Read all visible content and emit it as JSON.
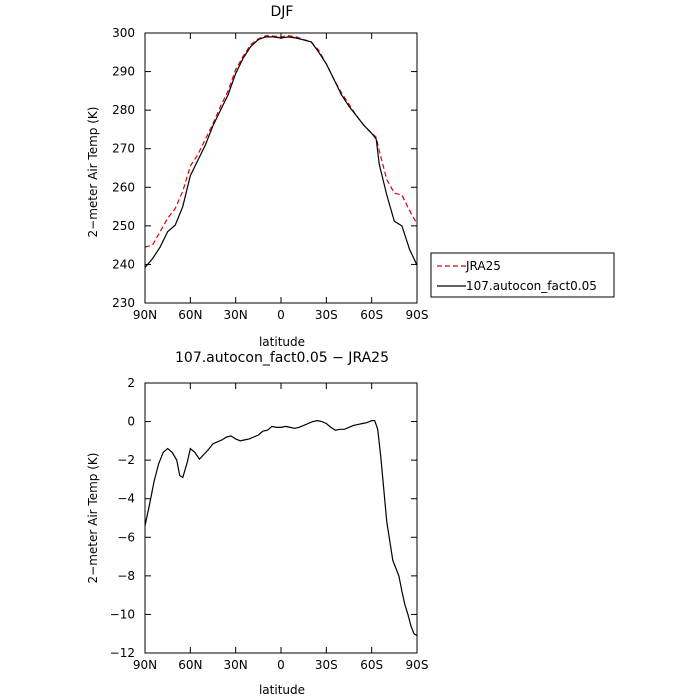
{
  "chart_data": [
    {
      "type": "line",
      "title": "DJF",
      "xlabel": "latitude",
      "ylabel": "2−meter Air Temp (K)",
      "xlim": [
        90,
        -90
      ],
      "ylim": [
        230,
        300
      ],
      "xticks": [
        90,
        60,
        30,
        0,
        -30,
        -60,
        -90
      ],
      "xticklabels": [
        "90N",
        "60N",
        "30N",
        "0",
        "30S",
        "60S",
        "90S"
      ],
      "yticks": [
        230,
        240,
        250,
        260,
        270,
        280,
        290,
        300
      ],
      "yticklabels": [
        "230",
        "240",
        "250",
        "260",
        "270",
        "280",
        "290",
        "300"
      ],
      "grid": false,
      "legend_position": "outside-right",
      "series": [
        {
          "name": "JRA25",
          "color": "#dd0000",
          "dash": "dashed",
          "x": [
            90,
            85,
            80,
            75,
            70,
            65,
            60,
            55,
            50,
            45,
            40,
            35,
            30,
            25,
            20,
            15,
            10,
            5,
            0,
            -5,
            -10,
            -15,
            -20,
            -25,
            -30,
            -35,
            -40,
            -45,
            -50,
            -55,
            -60,
            -63,
            -65,
            -70,
            -75,
            -80,
            -85,
            -90
          ],
          "y": [
            244.5,
            245.0,
            248.5,
            252.0,
            254.5,
            259.0,
            265.5,
            268.5,
            272.5,
            276.5,
            281.0,
            285.0,
            290.5,
            294.0,
            297.0,
            298.5,
            299.3,
            299.2,
            299.0,
            299.3,
            299.0,
            298.3,
            297.7,
            295.5,
            292.0,
            288.0,
            284.5,
            281.5,
            278.5,
            276.0,
            274.0,
            273.0,
            269.5,
            262.0,
            258.5,
            258.0,
            254.0,
            250.5
          ]
        },
        {
          "name": "107.autocon_fact0.05",
          "color": "#000000",
          "dash": "solid",
          "x": [
            90,
            85,
            80,
            75,
            70,
            65,
            60,
            55,
            50,
            45,
            40,
            35,
            30,
            25,
            20,
            15,
            10,
            5,
            0,
            -5,
            -10,
            -15,
            -20,
            -25,
            -30,
            -35,
            -40,
            -45,
            -50,
            -55,
            -60,
            -63,
            -65,
            -70,
            -75,
            -80,
            -85,
            -90
          ],
          "y": [
            239.2,
            241.5,
            244.5,
            248.5,
            250.2,
            255.0,
            263.0,
            267.0,
            271.0,
            276.0,
            280.0,
            284.0,
            289.5,
            293.5,
            296.5,
            298.3,
            299.0,
            299.0,
            298.7,
            299.0,
            298.7,
            298.2,
            297.7,
            295.0,
            292.0,
            288.0,
            284.0,
            281.0,
            278.5,
            276.0,
            274.0,
            272.5,
            266.0,
            258.0,
            251.2,
            250.0,
            244.0,
            239.8
          ]
        }
      ]
    },
    {
      "type": "line",
      "title": "107.autocon_fact0.05 − JRA25",
      "xlabel": "latitude",
      "ylabel": "2−meter Air Temp (K)",
      "xlim": [
        90,
        -90
      ],
      "ylim": [
        -12,
        2
      ],
      "xticks": [
        90,
        60,
        30,
        0,
        -30,
        -60,
        -90
      ],
      "xticklabels": [
        "90N",
        "60N",
        "30N",
        "0",
        "30S",
        "60S",
        "90S"
      ],
      "yticks": [
        -12,
        -10,
        -8,
        -6,
        -4,
        -2,
        0,
        2
      ],
      "yticklabels": [
        "−12",
        "−10",
        "−8",
        "−6",
        "−4",
        "−2",
        "0",
        "2"
      ],
      "grid": false,
      "series": [
        {
          "color": "#000000",
          "dash": "solid",
          "x": [
            90,
            87,
            84,
            81,
            78,
            75,
            72,
            69,
            67,
            65,
            62,
            60,
            57,
            54,
            51,
            48,
            45,
            42,
            39,
            36,
            33,
            30,
            27,
            24,
            21,
            18,
            15,
            12,
            9,
            6,
            3,
            0,
            -3,
            -6,
            -9,
            -12,
            -15,
            -18,
            -21,
            -24,
            -27,
            -30,
            -33,
            -36,
            -39,
            -42,
            -45,
            -48,
            -51,
            -54,
            -57,
            -60,
            -62,
            -64,
            -66,
            -68,
            -70,
            -72,
            -74,
            -76,
            -78,
            -80,
            -82,
            -84,
            -86,
            -88,
            -90
          ],
          "y": [
            -5.4,
            -4.3,
            -3.1,
            -2.2,
            -1.6,
            -1.4,
            -1.6,
            -2.0,
            -2.8,
            -2.9,
            -2.1,
            -1.4,
            -1.6,
            -1.95,
            -1.7,
            -1.45,
            -1.15,
            -1.05,
            -0.95,
            -0.8,
            -0.75,
            -0.9,
            -1.0,
            -0.95,
            -0.9,
            -0.8,
            -0.7,
            -0.5,
            -0.45,
            -0.25,
            -0.3,
            -0.3,
            -0.25,
            -0.3,
            -0.35,
            -0.3,
            -0.2,
            -0.1,
            0.0,
            0.05,
            0.0,
            -0.1,
            -0.3,
            -0.45,
            -0.4,
            -0.4,
            -0.3,
            -0.2,
            -0.15,
            -0.1,
            -0.05,
            0.05,
            0.05,
            -0.4,
            -1.8,
            -3.5,
            -5.2,
            -6.2,
            -7.2,
            -7.6,
            -8.0,
            -8.8,
            -9.5,
            -10.0,
            -10.6,
            -11.0,
            -11.1
          ]
        }
      ]
    }
  ]
}
